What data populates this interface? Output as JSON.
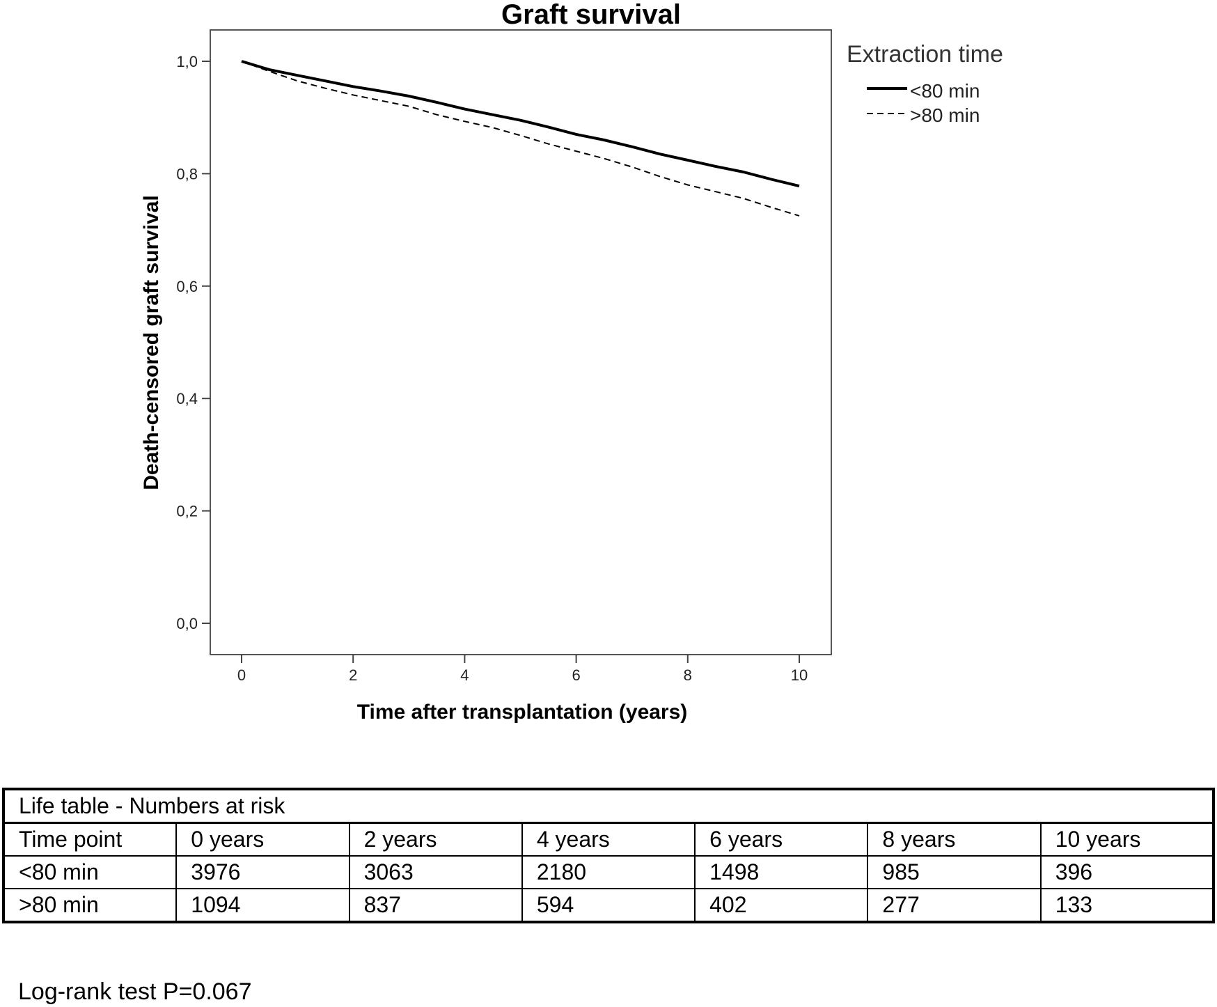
{
  "chart_data": {
    "type": "line",
    "title": "Graft survival",
    "xlabel": "Time after transplantation (years)",
    "ylabel": "Death-censored graft survival",
    "xlim": [
      0,
      10
    ],
    "ylim": [
      0.0,
      1.0
    ],
    "x_ticks": [
      0,
      2,
      4,
      6,
      8,
      10
    ],
    "x_tick_labels": [
      "0",
      "2",
      "4",
      "6",
      "8",
      "10"
    ],
    "y_ticks": [
      0.0,
      0.2,
      0.4,
      0.6,
      0.8,
      1.0
    ],
    "y_tick_labels": [
      "0,0",
      "0,2",
      "0,4",
      "0,6",
      "0,8",
      "1,0"
    ],
    "grid": false,
    "legend": {
      "title": "Extraction time",
      "placement": "right, outside plot, top"
    },
    "series": [
      {
        "name": "<80 min",
        "line_style": "solid",
        "color": "#000000",
        "x": [
          0,
          0.5,
          1,
          1.5,
          2,
          2.5,
          3,
          3.5,
          4,
          4.5,
          5,
          5.5,
          6,
          6.5,
          7,
          7.5,
          8,
          8.5,
          9,
          9.5,
          10
        ],
        "y": [
          1.0,
          0.985,
          0.975,
          0.965,
          0.955,
          0.947,
          0.938,
          0.927,
          0.915,
          0.905,
          0.895,
          0.883,
          0.87,
          0.86,
          0.848,
          0.835,
          0.824,
          0.813,
          0.803,
          0.79,
          0.778
        ]
      },
      {
        "name": ">80 min",
        "line_style": "dashed",
        "color": "#000000",
        "x": [
          0,
          0.5,
          1,
          1.5,
          2,
          2.5,
          3,
          3.5,
          4,
          4.5,
          5,
          5.5,
          6,
          6.5,
          7,
          7.5,
          8,
          8.5,
          9,
          9.5,
          10
        ],
        "y": [
          1.0,
          0.982,
          0.965,
          0.952,
          0.94,
          0.93,
          0.92,
          0.905,
          0.893,
          0.882,
          0.868,
          0.853,
          0.84,
          0.827,
          0.812,
          0.795,
          0.78,
          0.768,
          0.756,
          0.74,
          0.725
        ]
      }
    ]
  },
  "risk_table": {
    "caption": "Life table - Numbers at risk",
    "header": [
      "Time point",
      "0 years",
      "2 years",
      "4 years",
      "6 years",
      "8 years",
      "10 years"
    ],
    "rows": [
      [
        "<80 min",
        "3976",
        "3063",
        "2180",
        "1498",
        "985",
        "396"
      ],
      [
        ">80 min",
        "1094",
        "837",
        "594",
        "402",
        "277",
        "133"
      ]
    ]
  },
  "footer": {
    "logrank": "Log-rank test P=0.067"
  }
}
